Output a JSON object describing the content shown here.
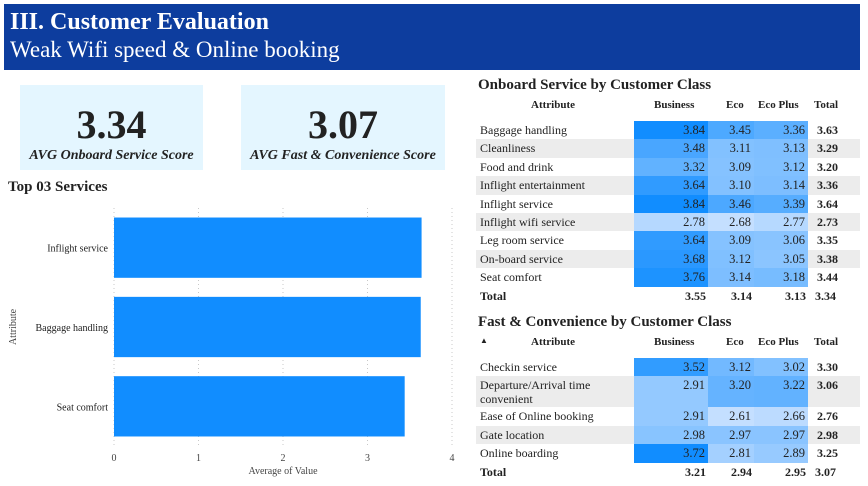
{
  "header": {
    "title": "III. Customer Evaluation",
    "subtitle": "Weak Wifi speed & Online booking"
  },
  "kpis": [
    {
      "value": "3.34",
      "label": "AVG Onboard Service Score"
    },
    {
      "value": "3.07",
      "label": "AVG Fast & Convenience Score"
    }
  ],
  "colors": {
    "header_bg": "#0d3d9e",
    "kpi_bg": "#e4f6ff",
    "bar": "#118dff",
    "heat_low": "#c4dfff",
    "heat_high": "#118dff"
  },
  "top_services": {
    "title": "Top 03 Services",
    "chart_data": {
      "type": "bar",
      "orientation": "horizontal",
      "categories": [
        "Inflight service",
        "Baggage handling",
        "Seat comfort"
      ],
      "values": [
        3.64,
        3.63,
        3.44
      ],
      "title": "",
      "xlabel": "Average of Value",
      "ylabel": "Attribute",
      "xlim": [
        0,
        4
      ],
      "xticks": [
        "0",
        "1",
        "2",
        "3",
        "4"
      ],
      "grid": true
    }
  },
  "onboard_table": {
    "title": "Onboard Service by Customer Class",
    "columns": [
      "Attribute",
      "Business",
      "Eco",
      "Eco Plus",
      "Total"
    ],
    "rows": [
      {
        "attr": "Baggage handling",
        "business": "3.84",
        "eco": "3.45",
        "eco_plus": "3.36",
        "total": "3.63"
      },
      {
        "attr": "Cleanliness",
        "business": "3.48",
        "eco": "3.11",
        "eco_plus": "3.13",
        "total": "3.29"
      },
      {
        "attr": "Food and drink",
        "business": "3.32",
        "eco": "3.09",
        "eco_plus": "3.12",
        "total": "3.20"
      },
      {
        "attr": "Inflight entertainment",
        "business": "3.64",
        "eco": "3.10",
        "eco_plus": "3.14",
        "total": "3.36"
      },
      {
        "attr": "Inflight service",
        "business": "3.84",
        "eco": "3.46",
        "eco_plus": "3.39",
        "total": "3.64"
      },
      {
        "attr": "Inflight wifi service",
        "business": "2.78",
        "eco": "2.68",
        "eco_plus": "2.77",
        "total": "2.73"
      },
      {
        "attr": "Leg room service",
        "business": "3.64",
        "eco": "3.09",
        "eco_plus": "3.06",
        "total": "3.35"
      },
      {
        "attr": "On-board service",
        "business": "3.68",
        "eco": "3.12",
        "eco_plus": "3.05",
        "total": "3.38"
      },
      {
        "attr": "Seat comfort",
        "business": "3.76",
        "eco": "3.14",
        "eco_plus": "3.18",
        "total": "3.44"
      }
    ],
    "total": {
      "attr": "Total",
      "business": "3.55",
      "eco": "3.14",
      "eco_plus": "3.13",
      "total": "3.34"
    }
  },
  "fast_table": {
    "title": "Fast & Convenience by Customer Class",
    "columns": [
      "Attribute",
      "Business",
      "Eco",
      "Eco Plus",
      "Total"
    ],
    "sort_indicator": "▲",
    "rows": [
      {
        "attr": "Checkin service",
        "business": "3.52",
        "eco": "3.12",
        "eco_plus": "3.02",
        "total": "3.30"
      },
      {
        "attr": "Departure/Arrival time convenient",
        "business": "2.91",
        "eco": "3.20",
        "eco_plus": "3.22",
        "total": "3.06"
      },
      {
        "attr": "Ease of Online booking",
        "business": "2.91",
        "eco": "2.61",
        "eco_plus": "2.66",
        "total": "2.76"
      },
      {
        "attr": "Gate location",
        "business": "2.98",
        "eco": "2.97",
        "eco_plus": "2.97",
        "total": "2.98"
      },
      {
        "attr": "Online boarding",
        "business": "3.72",
        "eco": "2.81",
        "eco_plus": "2.89",
        "total": "3.25"
      }
    ],
    "total": {
      "attr": "Total",
      "business": "3.21",
      "eco": "2.94",
      "eco_plus": "2.95",
      "total": "3.07"
    }
  }
}
